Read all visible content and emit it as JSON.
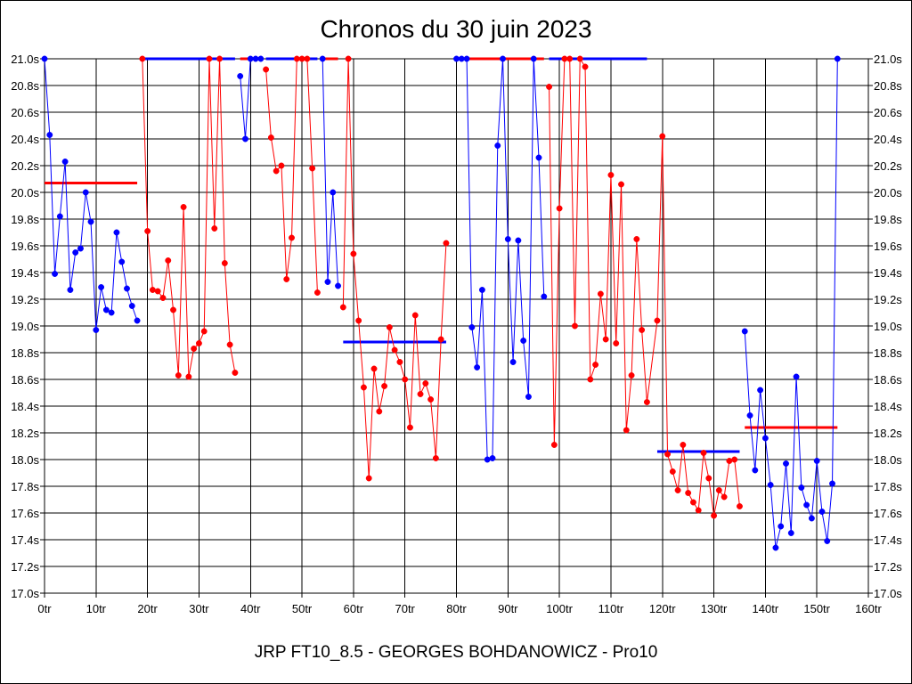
{
  "chart_data": {
    "type": "line",
    "title": "Chronos du 30 juin 2023",
    "subtitle": "JRP FT10_8.5 - GEORGES BOHDANOWICZ - Pro10",
    "xlim": [
      0,
      160
    ],
    "ylim": [
      17.0,
      21.0
    ],
    "x_tick_values": [
      0,
      10,
      20,
      30,
      40,
      50,
      60,
      70,
      80,
      90,
      100,
      110,
      120,
      130,
      140,
      150,
      160
    ],
    "x_tick_labels": [
      "0tr",
      "10tr",
      "20tr",
      "30tr",
      "40tr",
      "50tr",
      "60tr",
      "70tr",
      "80tr",
      "90tr",
      "100tr",
      "110tr",
      "120tr",
      "130tr",
      "140tr",
      "150tr",
      "160tr"
    ],
    "y_tick_values": [
      17.0,
      17.2,
      17.4,
      17.6,
      17.8,
      18.0,
      18.2,
      18.4,
      18.6,
      18.8,
      19.0,
      19.2,
      19.4,
      19.6,
      19.8,
      20.0,
      20.2,
      20.4,
      20.6,
      20.8,
      21.0
    ],
    "y_tick_labels": [
      "17.0s",
      "17.2s",
      "17.4s",
      "17.6s",
      "17.8s",
      "18.0s",
      "18.2s",
      "18.4s",
      "18.6s",
      "18.8s",
      "19.0s",
      "19.2s",
      "19.4s",
      "19.6s",
      "19.8s",
      "20.0s",
      "20.2s",
      "20.4s",
      "20.6s",
      "20.8s",
      "21.0s"
    ],
    "grid": true,
    "colors": {
      "blue": "#0000ff",
      "red": "#ff0000"
    },
    "series": [
      {
        "name": "blue-1",
        "color": "blue",
        "points": [
          [
            0,
            21.0
          ],
          [
            1,
            20.43
          ],
          [
            2,
            19.39
          ],
          [
            3,
            19.82
          ],
          [
            4,
            20.23
          ],
          [
            5,
            19.27
          ],
          [
            6,
            19.55
          ],
          [
            7,
            19.58
          ],
          [
            8,
            20.0
          ],
          [
            9,
            19.78
          ],
          [
            10,
            18.97
          ],
          [
            11,
            19.29
          ],
          [
            12,
            19.12
          ],
          [
            13,
            19.1
          ],
          [
            14,
            19.7
          ],
          [
            15,
            19.48
          ],
          [
            16,
            19.28
          ],
          [
            17,
            19.15
          ],
          [
            18,
            19.04
          ]
        ]
      },
      {
        "name": "red-2",
        "color": "red",
        "points": [
          [
            19,
            21.0
          ],
          [
            20,
            19.71
          ],
          [
            21,
            19.27
          ],
          [
            22,
            19.26
          ],
          [
            23,
            19.21
          ],
          [
            24,
            19.49
          ],
          [
            25,
            19.12
          ],
          [
            26,
            18.63
          ],
          [
            27,
            19.89
          ],
          [
            28,
            18.62
          ],
          [
            29,
            18.83
          ],
          [
            30,
            18.87
          ],
          [
            31,
            18.96
          ],
          [
            32,
            21.0
          ],
          [
            33,
            19.73
          ],
          [
            34,
            21.0
          ],
          [
            35,
            19.47
          ],
          [
            36,
            18.86
          ],
          [
            37,
            18.65
          ]
        ]
      },
      {
        "name": "blue-3",
        "color": "blue",
        "points": [
          [
            38,
            20.87
          ],
          [
            39,
            20.4
          ],
          [
            40,
            21.0
          ],
          [
            41,
            21.0
          ],
          [
            42,
            21.0
          ]
        ]
      },
      {
        "name": "red-4",
        "color": "red",
        "points": [
          [
            43,
            20.92
          ],
          [
            44,
            20.41
          ],
          [
            45,
            20.16
          ],
          [
            46,
            20.2
          ],
          [
            47,
            19.35
          ],
          [
            48,
            19.66
          ],
          [
            49,
            21.0
          ],
          [
            50,
            21.0
          ],
          [
            51,
            21.0
          ],
          [
            52,
            20.18
          ],
          [
            53,
            19.25
          ]
        ]
      },
      {
        "name": "blue-5",
        "color": "blue",
        "points": [
          [
            54,
            21.0
          ],
          [
            55,
            19.33
          ],
          [
            56,
            20.0
          ],
          [
            57,
            19.3
          ]
        ]
      },
      {
        "name": "red-6",
        "color": "red",
        "points": [
          [
            58,
            19.14
          ],
          [
            59,
            21.0
          ],
          [
            60,
            19.54
          ],
          [
            61,
            19.04
          ],
          [
            62,
            18.54
          ],
          [
            63,
            17.86
          ],
          [
            64,
            18.68
          ],
          [
            65,
            18.36
          ],
          [
            66,
            18.55
          ],
          [
            67,
            18.99
          ],
          [
            68,
            18.82
          ],
          [
            69,
            18.73
          ],
          [
            70,
            18.6
          ],
          [
            71,
            18.24
          ],
          [
            72,
            19.08
          ],
          [
            73,
            18.49
          ],
          [
            74,
            18.57
          ],
          [
            75,
            18.45
          ],
          [
            76,
            18.01
          ],
          [
            77,
            18.9
          ],
          [
            78,
            19.62
          ]
        ]
      },
      {
        "name": "blue-7",
        "color": "blue",
        "points": [
          [
            80,
            21.0
          ],
          [
            81,
            21.0
          ],
          [
            82,
            21.0
          ],
          [
            83,
            18.99
          ],
          [
            84,
            18.69
          ],
          [
            85,
            19.27
          ],
          [
            86,
            18.0
          ],
          [
            87,
            18.01
          ],
          [
            88,
            20.35
          ],
          [
            89,
            21.0
          ],
          [
            90,
            19.65
          ],
          [
            91,
            18.73
          ],
          [
            92,
            19.64
          ],
          [
            93,
            18.89
          ],
          [
            94,
            18.47
          ],
          [
            95,
            21.0
          ],
          [
            96,
            20.26
          ],
          [
            97,
            19.22
          ]
        ]
      },
      {
        "name": "red-8",
        "color": "red",
        "points": [
          [
            98,
            20.79
          ],
          [
            99,
            18.11
          ],
          [
            100,
            19.88
          ],
          [
            101,
            21.0
          ],
          [
            102,
            21.0
          ],
          [
            103,
            19.0
          ],
          [
            104,
            21.0
          ],
          [
            105,
            20.94
          ],
          [
            106,
            18.6
          ],
          [
            107,
            18.71
          ],
          [
            108,
            19.24
          ],
          [
            109,
            18.9
          ],
          [
            110,
            20.13
          ],
          [
            111,
            18.87
          ],
          [
            112,
            20.06
          ],
          [
            113,
            18.22
          ],
          [
            114,
            18.63
          ],
          [
            115,
            19.65
          ],
          [
            116,
            18.97
          ],
          [
            117,
            18.43
          ],
          [
            119,
            19.04
          ],
          [
            120,
            20.42
          ],
          [
            121,
            18.04
          ],
          [
            122,
            17.91
          ],
          [
            123,
            17.77
          ],
          [
            124,
            18.11
          ],
          [
            125,
            17.75
          ],
          [
            126,
            17.68
          ],
          [
            127,
            17.62
          ],
          [
            128,
            18.05
          ],
          [
            129,
            17.86
          ],
          [
            130,
            17.58
          ],
          [
            131,
            17.77
          ],
          [
            132,
            17.72
          ],
          [
            133,
            17.99
          ],
          [
            134,
            18.0
          ],
          [
            135,
            17.65
          ]
        ]
      },
      {
        "name": "blue-9",
        "color": "blue",
        "points": [
          [
            136,
            18.96
          ],
          [
            137,
            18.33
          ],
          [
            138,
            17.92
          ],
          [
            139,
            18.52
          ],
          [
            140,
            18.16
          ],
          [
            141,
            17.81
          ],
          [
            142,
            17.34
          ],
          [
            143,
            17.5
          ],
          [
            144,
            17.97
          ],
          [
            145,
            17.45
          ],
          [
            146,
            18.62
          ],
          [
            147,
            17.79
          ],
          [
            148,
            17.66
          ],
          [
            149,
            17.56
          ],
          [
            150,
            17.99
          ],
          [
            151,
            17.61
          ],
          [
            152,
            17.39
          ],
          [
            153,
            17.82
          ],
          [
            154,
            21.0
          ]
        ]
      }
    ],
    "average_lines": [
      {
        "color": "red",
        "x": [
          0,
          18
        ],
        "y": 20.07
      },
      {
        "color": "blue",
        "x": [
          19,
          37
        ],
        "y": 21.0
      },
      {
        "color": "red",
        "x": [
          38,
          42
        ],
        "y": 21.0
      },
      {
        "color": "blue",
        "x": [
          43,
          53
        ],
        "y": 21.0
      },
      {
        "color": "red",
        "x": [
          54,
          57
        ],
        "y": 21.0
      },
      {
        "color": "blue",
        "x": [
          58,
          78
        ],
        "y": 18.88
      },
      {
        "color": "red",
        "x": [
          80,
          97
        ],
        "y": 21.0
      },
      {
        "color": "blue",
        "x": [
          98,
          117
        ],
        "y": 21.0
      },
      {
        "color": "blue",
        "x": [
          119,
          135
        ],
        "y": 18.06
      },
      {
        "color": "red",
        "x": [
          136,
          154
        ],
        "y": 18.24
      }
    ]
  }
}
